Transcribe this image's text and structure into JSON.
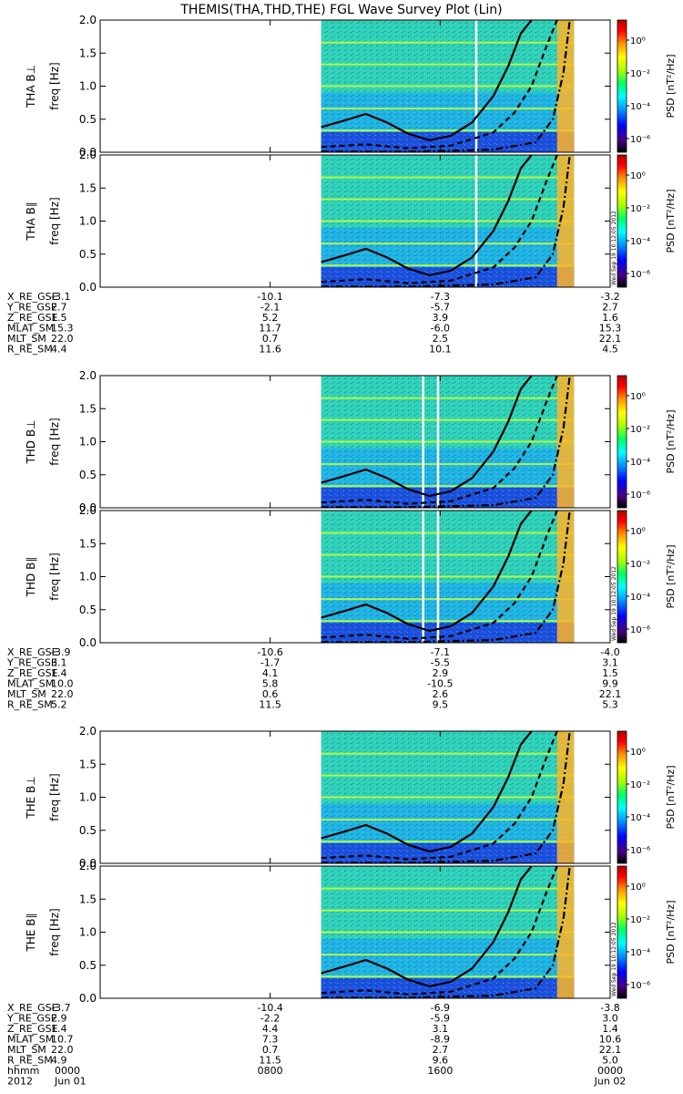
{
  "title": "THEMIS(THA,THD,THE) FGL Wave Survey Plot (Lin)",
  "stamp": "Wed Sep 19 10:12:05 2012",
  "colorbar": {
    "label": "PSD [nT²/Hz]",
    "ticks": [
      "10⁰",
      "10⁻²",
      "10⁻⁴",
      "10⁻⁶"
    ],
    "colors": [
      "#000000",
      "#4b0082",
      "#0000ff",
      "#0096ff",
      "#00ffff",
      "#00ff64",
      "#aaff00",
      "#ffff00",
      "#ff9600",
      "#ff0000",
      "#b40000"
    ]
  },
  "chart_data": {
    "type": "heatmap",
    "x_axis": {
      "range_hours": [
        0,
        24
      ],
      "tick_hours": [
        0,
        8,
        16,
        24
      ],
      "tick_labels": [
        "0000",
        "0800",
        "1600",
        "0000"
      ],
      "date_labels": [
        "Jun 01",
        "Jun 02"
      ],
      "year": "2012",
      "row_label": "hhmm"
    },
    "y_axis": {
      "label": "freq [Hz]",
      "range": [
        0,
        2.0
      ],
      "ticks": [
        0.0,
        0.5,
        1.0,
        1.5,
        2.0
      ],
      "tick_labels": [
        "0.0",
        "0.5",
        "1.0",
        "1.5",
        "2.0"
      ]
    },
    "data_start_hours": 10.4,
    "probes": [
      {
        "id": "THA",
        "panels": [
          "THA B⊥",
          "THA B∥"
        ],
        "white_gaps_hours": [
          17.7
        ],
        "orbit": {
          "X_RE_GSE": [
            "-3.1",
            "-10.1",
            "-7.3",
            "-3.2"
          ],
          "Y_RE_GSE": [
            "2.7",
            "-2.1",
            "-5.7",
            "2.7"
          ],
          "Z_RE_GSE": [
            "1.5",
            "5.2",
            "3.9",
            "1.6"
          ],
          "MLAT_SM": [
            "15.3",
            "11.7",
            "-6.0",
            "15.3"
          ],
          "MLT_SM": [
            "22.0",
            "0.7",
            "2.5",
            "22.1"
          ],
          "R_RE_SM": [
            "4.4",
            "11.6",
            "10.1",
            "4.5"
          ]
        }
      },
      {
        "id": "THD",
        "panels": [
          "THD B⊥",
          "THD B∥"
        ],
        "white_gaps_hours": [
          15.2,
          15.9
        ],
        "orbit": {
          "X_RE_GSE": [
            "-3.9",
            "-10.6",
            "-7.1",
            "-4.0"
          ],
          "Y_RE_GSE": [
            "3.1",
            "-1.7",
            "-5.5",
            "3.1"
          ],
          "Z_RE_GSE": [
            "1.4",
            "4.1",
            "2.9",
            "1.5"
          ],
          "MLAT_SM": [
            "10.0",
            "5.8",
            "-10.5",
            "9.9"
          ],
          "MLT_SM": [
            "22.0",
            "0.6",
            "2.6",
            "22.1"
          ],
          "R_RE_SM": [
            "5.2",
            "11.5",
            "9.5",
            "5.3"
          ]
        }
      },
      {
        "id": "THE",
        "panels": [
          "THE B⊥",
          "THE B∥"
        ],
        "white_gaps_hours": [],
        "orbit": {
          "X_RE_GSE": [
            "-3.7",
            "-10.4",
            "-6.9",
            "-3.8"
          ],
          "Y_RE_GSE": [
            "2.9",
            "-2.2",
            "-5.9",
            "3.0"
          ],
          "Z_RE_GSE": [
            "1.4",
            "4.4",
            "3.1",
            "1.4"
          ],
          "MLAT_SM": [
            "10.7",
            "7.3",
            "-8.9",
            "10.6"
          ],
          "MLT_SM": [
            "22.0",
            "0.7",
            "2.7",
            "22.1"
          ],
          "R_RE_SM": [
            "4.9",
            "11.5",
            "9.6",
            "5.0"
          ]
        }
      }
    ],
    "orbit_labels": [
      "X_RE_GSE",
      "Y_RE_GSE",
      "Z_RE_GSE",
      "MLAT_SM",
      "MLT_SM",
      "R_RE_SM"
    ],
    "harmonic_lines_hz": [
      0.33,
      0.66,
      1.0,
      1.33,
      1.66
    ],
    "gyro_curves": {
      "fce": {
        "style": "solid",
        "hours": [
          10.4,
          11.5,
          12.5,
          13.5,
          14.5,
          15.5,
          16.5,
          17.5,
          18.5,
          19.2,
          19.8,
          20.3
        ],
        "hz": [
          0.38,
          0.48,
          0.58,
          0.45,
          0.28,
          0.18,
          0.25,
          0.45,
          0.85,
          1.3,
          1.8,
          2.0
        ]
      },
      "fce_half": {
        "style": "dashed",
        "hours": [
          10.4,
          12.5,
          14.5,
          16.5,
          18.5,
          19.5,
          20.3,
          21.0,
          21.5
        ],
        "hz": [
          0.08,
          0.12,
          0.06,
          0.1,
          0.3,
          0.6,
          1.0,
          1.6,
          2.0
        ]
      },
      "fce_tenth": {
        "style": "dashdot",
        "hours": [
          10.4,
          14.5,
          18.5,
          20.5,
          21.3,
          21.8,
          22.1
        ],
        "hz": [
          0.01,
          0.01,
          0.04,
          0.15,
          0.5,
          1.2,
          2.0
        ]
      }
    }
  }
}
